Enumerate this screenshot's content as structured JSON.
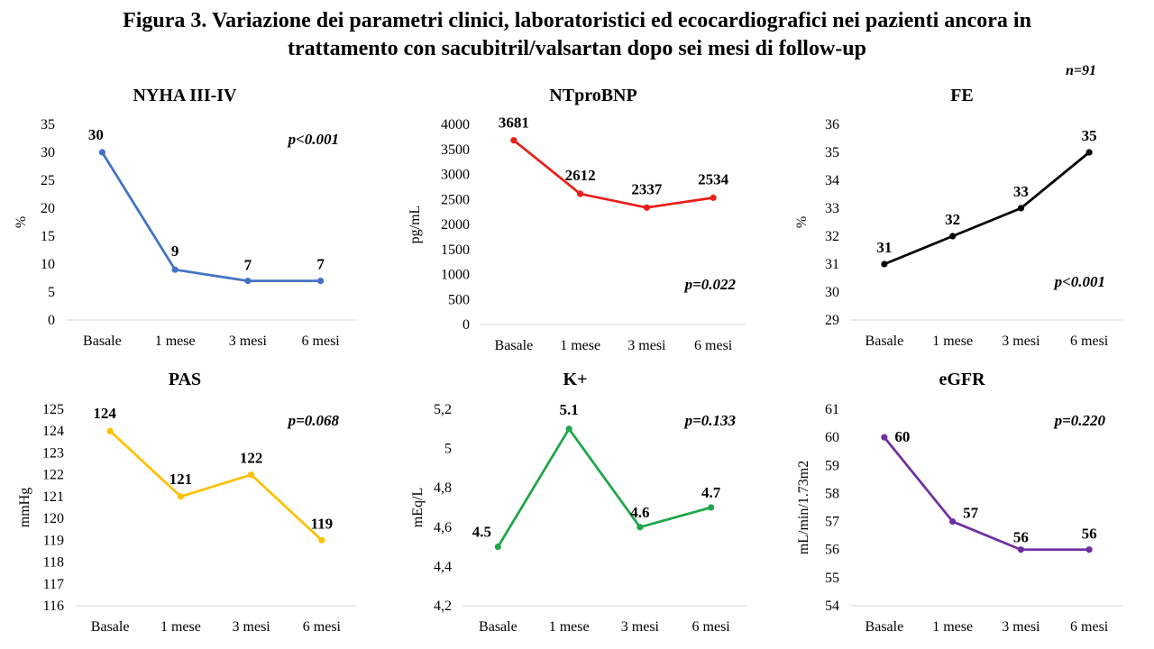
{
  "title_line1": "Figura 3. Variazione dei parametri clinici, laboratoristici ed ecocardiografici nei pazienti ancora in",
  "title_line2": "trattamento con sacubitril/valsartan dopo sei mesi di follow-up",
  "n_label": "n=91",
  "chart_data": [
    {
      "type": "line",
      "title": "NYHA III-IV",
      "ylabel": "%",
      "pvalue": "p<0.001",
      "color": "#4472C4",
      "categories": [
        "Basale",
        "1 mese",
        "3 mesi",
        "6 mesi"
      ],
      "values": [
        30,
        9,
        7,
        7
      ],
      "data_labels": [
        "30",
        "9",
        "7",
        "7"
      ],
      "ylim": [
        0,
        35
      ],
      "yticks": [
        "0",
        "5",
        "10",
        "15",
        "20",
        "25",
        "30",
        "35"
      ]
    },
    {
      "type": "line",
      "title": "NTproBNP",
      "ylabel": "pg/mL",
      "pvalue": "p=0.022",
      "color": "#E8201A",
      "categories": [
        "Basale",
        "1 mese",
        "3 mesi",
        "6 mesi"
      ],
      "values": [
        3681,
        2612,
        2337,
        2534
      ],
      "data_labels": [
        "3681",
        "2612",
        "2337",
        "2534"
      ],
      "ylim": [
        0,
        4000
      ],
      "yticks": [
        "0",
        "500",
        "1000",
        "1500",
        "2000",
        "2500",
        "3000",
        "3500",
        "4000"
      ]
    },
    {
      "type": "line",
      "title": "FE",
      "ylabel": "%",
      "pvalue": "p<0.001",
      "color": "#000000",
      "categories": [
        "Basale",
        "1 mese",
        "3 mesi",
        "6 mesi"
      ],
      "values": [
        31,
        32,
        33,
        35
      ],
      "data_labels": [
        "31",
        "32",
        "33",
        "35"
      ],
      "ylim": [
        29,
        36
      ],
      "yticks": [
        "29",
        "30",
        "31",
        "32",
        "33",
        "34",
        "35",
        "36"
      ]
    },
    {
      "type": "line",
      "title": "PAS",
      "ylabel": "mmHg",
      "pvalue": "p=0.068",
      "color": "#FFC000",
      "categories": [
        "Basale",
        "1 mese",
        "3 mesi",
        "6 mesi"
      ],
      "values": [
        124,
        121,
        122,
        119
      ],
      "data_labels": [
        "124",
        "121",
        "122",
        "119"
      ],
      "ylim": [
        116,
        125
      ],
      "yticks": [
        "116",
        "117",
        "118",
        "119",
        "120",
        "121",
        "122",
        "123",
        "124",
        "125"
      ]
    },
    {
      "type": "line",
      "title": "K+",
      "ylabel": "mEq/L",
      "pvalue": "p=0.133",
      "color": "#1FA64A",
      "categories": [
        "Basale",
        "1 mese",
        "3 mesi",
        "6 mesi"
      ],
      "values": [
        4.5,
        5.1,
        4.6,
        4.7
      ],
      "data_labels": [
        "4.5",
        "5.1",
        "4.6",
        "4.7"
      ],
      "ylim": [
        4.2,
        5.2
      ],
      "yticks": [
        "4,2",
        "4,4",
        "4,6",
        "4,8",
        "5",
        "5,2"
      ]
    },
    {
      "type": "line",
      "title": "eGFR",
      "ylabel": "mL/min/1.73m2",
      "pvalue": "p=0.220",
      "color": "#7030A0",
      "categories": [
        "Basale",
        "1 mese",
        "3 mesi",
        "6 mesi"
      ],
      "values": [
        60,
        57,
        56,
        56
      ],
      "data_labels": [
        "60",
        "57",
        "56",
        "56"
      ],
      "ylim": [
        54,
        61
      ],
      "yticks": [
        "54",
        "55",
        "56",
        "57",
        "58",
        "59",
        "60",
        "61"
      ]
    }
  ]
}
